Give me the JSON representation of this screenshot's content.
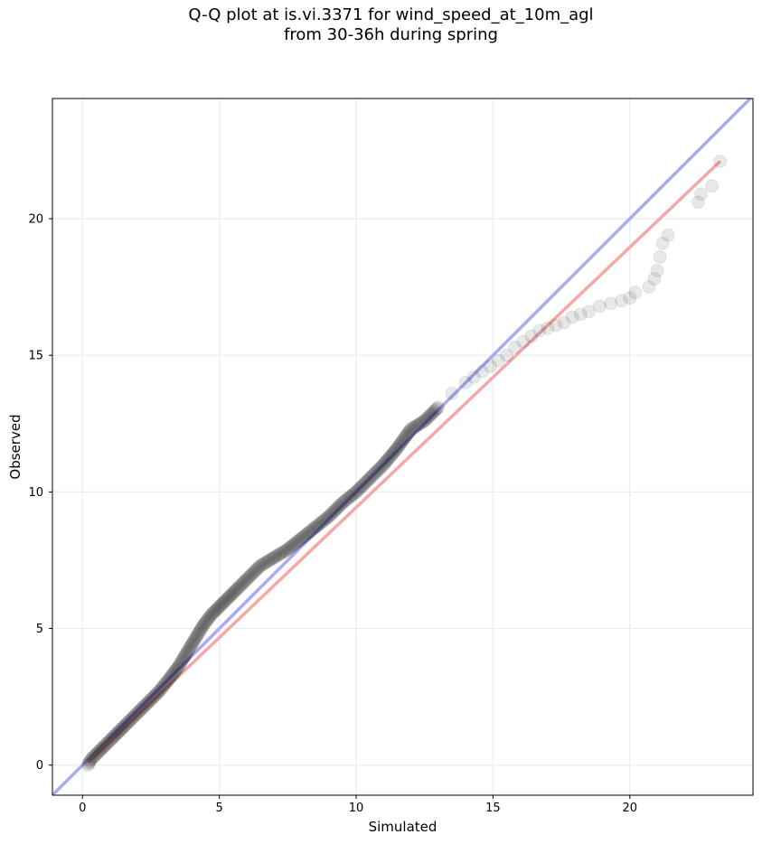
{
  "chart_data": {
    "type": "scatter",
    "title_lines": [
      "Q-Q plot at is.vi.3371 for wind_speed_at_10m_agl",
      "from 30-36h during spring"
    ],
    "xlabel": "Simulated",
    "ylabel": "Observed",
    "xlim": [
      -1.1,
      24.5
    ],
    "ylim": [
      -1.1,
      24.4
    ],
    "xticks": [
      0,
      5,
      10,
      15,
      20
    ],
    "yticks": [
      0,
      5,
      10,
      15,
      20
    ],
    "grid": true,
    "reference_lines": [
      {
        "name": "1:1 line",
        "color": "#aaaaf5",
        "x": [
          -1.1,
          24.5
        ],
        "y": [
          -1.1,
          24.5
        ]
      },
      {
        "name": "fit line",
        "color": "#f5a8a8",
        "x": [
          0.2,
          23.3
        ],
        "y": [
          0.1,
          22.1
        ]
      }
    ],
    "series_color": "#000000",
    "points": {
      "x": [
        0.2,
        0.3,
        0.5,
        0.8,
        1.0,
        1.3,
        1.6,
        2.0,
        2.4,
        2.8,
        3.2,
        3.5,
        3.8,
        4.1,
        4.4,
        4.7,
        5.0,
        5.3,
        5.6,
        6.0,
        6.5,
        7.0,
        7.5,
        8.0,
        8.5,
        9.0,
        9.5,
        10.0,
        10.5,
        11.0,
        11.5,
        12.0,
        12.5,
        13.0,
        13.5,
        14.0,
        14.3,
        14.6,
        14.9,
        15.2,
        15.5,
        15.8,
        16.1,
        16.4,
        16.7,
        17.0,
        17.3,
        17.6,
        17.9,
        18.2,
        18.5,
        18.9,
        19.3,
        19.7,
        20.0,
        20.2,
        20.7,
        20.9,
        21.0,
        21.1,
        21.2,
        21.4,
        22.5,
        22.6,
        23.0,
        23.3
      ],
      "y": [
        0.0,
        0.2,
        0.4,
        0.7,
        0.9,
        1.2,
        1.5,
        1.9,
        2.3,
        2.7,
        3.2,
        3.6,
        4.1,
        4.6,
        5.1,
        5.5,
        5.8,
        6.1,
        6.4,
        6.8,
        7.3,
        7.6,
        7.9,
        8.3,
        8.7,
        9.1,
        9.6,
        10.0,
        10.5,
        11.0,
        11.6,
        12.3,
        12.6,
        13.1,
        13.6,
        14.0,
        14.2,
        14.4,
        14.6,
        14.8,
        15.0,
        15.3,
        15.5,
        15.7,
        15.9,
        16.0,
        16.1,
        16.2,
        16.4,
        16.5,
        16.6,
        16.8,
        16.9,
        17.0,
        17.1,
        17.3,
        17.5,
        17.8,
        18.1,
        18.6,
        19.1,
        19.4,
        20.6,
        20.9,
        21.2,
        22.1
      ]
    }
  }
}
